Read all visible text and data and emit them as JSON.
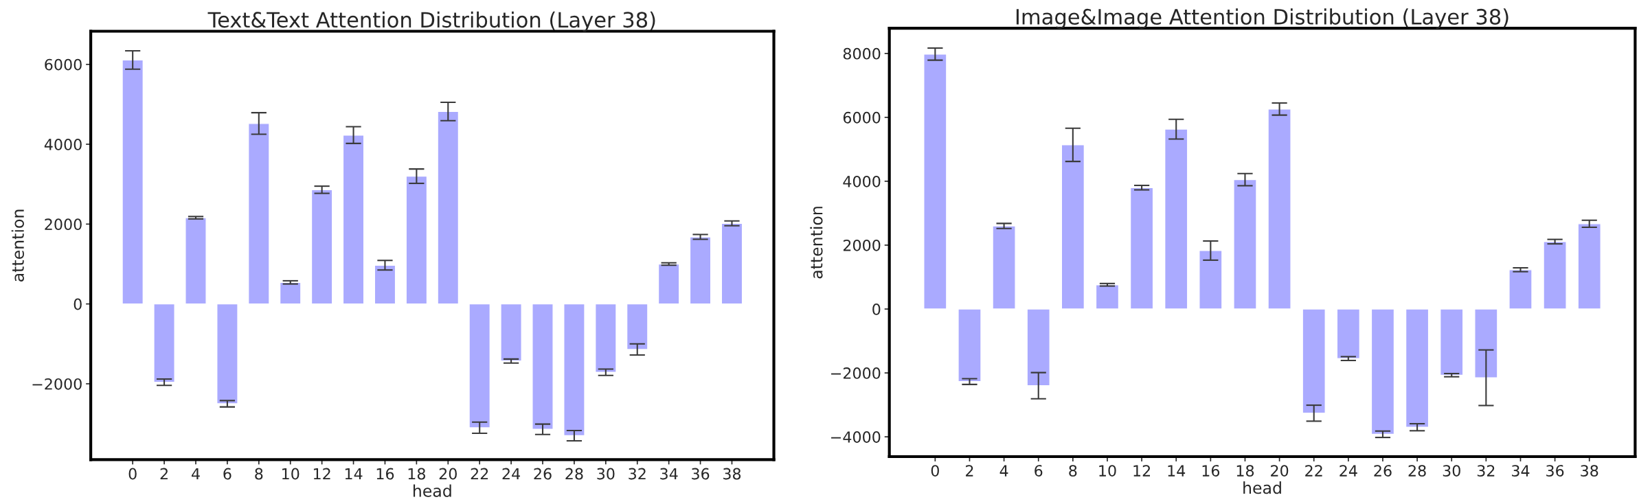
{
  "chart_data": [
    {
      "type": "bar",
      "title": "Text&Text Attention Distribution (Layer 38)",
      "xlabel": "head",
      "ylabel": "attention",
      "categories": [
        "0",
        "2",
        "4",
        "6",
        "8",
        "10",
        "12",
        "14",
        "16",
        "18",
        "20",
        "22",
        "24",
        "26",
        "28",
        "30",
        "32",
        "34",
        "36",
        "38"
      ],
      "values": [
        6110,
        -1960,
        2160,
        -2500,
        4520,
        540,
        2860,
        4230,
        970,
        3200,
        4820,
        -3100,
        -1430,
        -3140,
        -3300,
        -1710,
        -1140,
        1000,
        1680,
        2020
      ],
      "errors": [
        230,
        80,
        30,
        80,
        270,
        40,
        90,
        210,
        120,
        180,
        230,
        140,
        50,
        130,
        130,
        80,
        140,
        30,
        60,
        60
      ],
      "color": "#aaaaff",
      "ylim": [
        -3900,
        6830
      ],
      "yticks": [
        -2000,
        0,
        2000,
        4000,
        6000
      ],
      "grid": false
    },
    {
      "type": "bar",
      "title": "Image&Image Attention Distribution (Layer 38)",
      "xlabel": "head",
      "ylabel": "attention",
      "categories": [
        "0",
        "2",
        "4",
        "6",
        "8",
        "10",
        "12",
        "14",
        "16",
        "18",
        "20",
        "22",
        "24",
        "26",
        "28",
        "30",
        "32",
        "34",
        "36",
        "38"
      ],
      "values": [
        7980,
        -2270,
        2600,
        -2400,
        5140,
        760,
        3800,
        5630,
        1830,
        4050,
        6260,
        -3260,
        -1550,
        -3920,
        -3700,
        -2070,
        -2150,
        1230,
        2110,
        2670
      ],
      "errors": [
        190,
        90,
        80,
        410,
        520,
        40,
        70,
        310,
        300,
        190,
        190,
        250,
        60,
        100,
        110,
        50,
        870,
        60,
        70,
        110
      ],
      "color": "#aaaaff",
      "ylim": [
        -4620,
        8790
      ],
      "yticks": [
        -4000,
        -2000,
        0,
        2000,
        4000,
        6000,
        8000
      ],
      "grid": false
    }
  ]
}
